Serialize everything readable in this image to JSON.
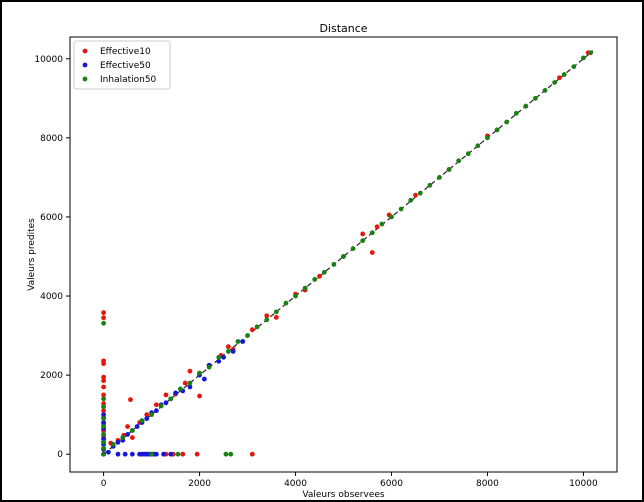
{
  "chart_data": {
    "type": "scatter",
    "title": "Distance",
    "xlabel": "Valeurs observees",
    "ylabel": "Valeurs predites",
    "xlim": [
      -700,
      10700
    ],
    "ylim": [
      -450,
      10550
    ],
    "xticks": [
      0,
      2000,
      4000,
      6000,
      8000,
      10000
    ],
    "yticks": [
      0,
      2000,
      4000,
      6000,
      8000,
      10000
    ],
    "grid": false,
    "legend_position": "top-left",
    "identity_line": true,
    "series": [
      {
        "name": "Effective10",
        "color": "#e8150c",
        "points": [
          [
            0,
            3580
          ],
          [
            0,
            3450
          ],
          [
            0,
            2360
          ],
          [
            0,
            2290
          ],
          [
            0,
            1950
          ],
          [
            0,
            1860
          ],
          [
            0,
            1700
          ],
          [
            0,
            1500
          ],
          [
            0,
            1280
          ],
          [
            0,
            1100
          ],
          [
            0,
            930
          ],
          [
            0,
            760
          ],
          [
            0,
            600
          ],
          [
            0,
            430
          ],
          [
            0,
            300
          ],
          [
            0,
            150
          ],
          [
            0,
            0
          ],
          [
            150,
            280
          ],
          [
            300,
            350
          ],
          [
            420,
            480
          ],
          [
            500,
            700
          ],
          [
            560,
            1380
          ],
          [
            600,
            420
          ],
          [
            750,
            800
          ],
          [
            900,
            1000
          ],
          [
            1100,
            1250
          ],
          [
            1300,
            1500
          ],
          [
            1500,
            1520
          ],
          [
            1700,
            1800
          ],
          [
            1800,
            2100
          ],
          [
            2000,
            1470
          ],
          [
            2000,
            2050
          ],
          [
            2200,
            2250
          ],
          [
            2450,
            2500
          ],
          [
            2600,
            2720
          ],
          [
            2700,
            2650
          ],
          [
            3100,
            3150
          ],
          [
            3400,
            3500
          ],
          [
            3600,
            3460
          ],
          [
            4000,
            4050
          ],
          [
            4200,
            4150
          ],
          [
            4500,
            4500
          ],
          [
            5000,
            5000
          ],
          [
            5400,
            5570
          ],
          [
            5600,
            5100
          ],
          [
            5700,
            5750
          ],
          [
            5950,
            6050
          ],
          [
            6500,
            6550
          ],
          [
            7200,
            7200
          ],
          [
            8000,
            8050
          ],
          [
            8800,
            8800
          ],
          [
            9500,
            9520
          ],
          [
            10100,
            10150
          ],
          [
            1300,
            0
          ],
          [
            1450,
            0
          ],
          [
            1650,
            0
          ],
          [
            1950,
            0
          ],
          [
            3100,
            0
          ]
        ]
      },
      {
        "name": "Effective50",
        "color": "#1517d8",
        "points": [
          [
            0,
            1000
          ],
          [
            0,
            800
          ],
          [
            0,
            650
          ],
          [
            0,
            500
          ],
          [
            0,
            380
          ],
          [
            0,
            250
          ],
          [
            0,
            120
          ],
          [
            0,
            0
          ],
          [
            100,
            50
          ],
          [
            200,
            200
          ],
          [
            300,
            300
          ],
          [
            400,
            350
          ],
          [
            500,
            500
          ],
          [
            600,
            600
          ],
          [
            700,
            700
          ],
          [
            800,
            800
          ],
          [
            900,
            900
          ],
          [
            1000,
            1050
          ],
          [
            1100,
            1100
          ],
          [
            1200,
            1250
          ],
          [
            1300,
            1300
          ],
          [
            1400,
            1400
          ],
          [
            1500,
            1550
          ],
          [
            1650,
            1600
          ],
          [
            1800,
            1700
          ],
          [
            2000,
            2000
          ],
          [
            2100,
            1900
          ],
          [
            2200,
            2250
          ],
          [
            2400,
            2350
          ],
          [
            2500,
            2450
          ],
          [
            2700,
            2600
          ],
          [
            2900,
            2850
          ],
          [
            300,
            0
          ],
          [
            450,
            0
          ],
          [
            600,
            0
          ],
          [
            750,
            0
          ],
          [
            800,
            0
          ],
          [
            850,
            0
          ],
          [
            900,
            0
          ],
          [
            950,
            0
          ],
          [
            1000,
            0
          ],
          [
            1050,
            0
          ],
          [
            1100,
            0
          ],
          [
            1250,
            0
          ],
          [
            1400,
            0
          ]
        ]
      },
      {
        "name": "Inhalation50",
        "color": "#1a8014",
        "points": [
          [
            0,
            3310
          ],
          [
            0,
            1400
          ],
          [
            0,
            1200
          ],
          [
            0,
            900
          ],
          [
            0,
            700
          ],
          [
            0,
            500
          ],
          [
            0,
            300
          ],
          [
            0,
            150
          ],
          [
            0,
            0
          ],
          [
            200,
            250
          ],
          [
            400,
            420
          ],
          [
            600,
            600
          ],
          [
            800,
            850
          ],
          [
            1000,
            1000
          ],
          [
            1200,
            1220
          ],
          [
            1400,
            1400
          ],
          [
            1600,
            1650
          ],
          [
            1800,
            1800
          ],
          [
            2000,
            2050
          ],
          [
            2200,
            2200
          ],
          [
            2400,
            2450
          ],
          [
            2600,
            2600
          ],
          [
            2800,
            2850
          ],
          [
            3000,
            3000
          ],
          [
            3200,
            3220
          ],
          [
            3400,
            3400
          ],
          [
            3600,
            3600
          ],
          [
            3800,
            3820
          ],
          [
            4000,
            4000
          ],
          [
            4200,
            4200
          ],
          [
            4400,
            4420
          ],
          [
            4600,
            4600
          ],
          [
            4800,
            4800
          ],
          [
            5000,
            5000
          ],
          [
            5200,
            5200
          ],
          [
            5400,
            5400
          ],
          [
            5600,
            5600
          ],
          [
            5800,
            5820
          ],
          [
            6000,
            6000
          ],
          [
            6200,
            6200
          ],
          [
            6400,
            6420
          ],
          [
            6600,
            6600
          ],
          [
            6800,
            6800
          ],
          [
            7000,
            7000
          ],
          [
            7200,
            7200
          ],
          [
            7400,
            7420
          ],
          [
            7600,
            7600
          ],
          [
            7800,
            7800
          ],
          [
            8000,
            8000
          ],
          [
            8200,
            8200
          ],
          [
            8400,
            8400
          ],
          [
            8600,
            8620
          ],
          [
            8800,
            8800
          ],
          [
            9000,
            9000
          ],
          [
            9200,
            9200
          ],
          [
            9400,
            9400
          ],
          [
            9600,
            9600
          ],
          [
            9800,
            9800
          ],
          [
            10000,
            10020
          ],
          [
            10150,
            10150
          ],
          [
            1000,
            0
          ],
          [
            1550,
            0
          ],
          [
            2550,
            0
          ],
          [
            2650,
            0
          ]
        ]
      }
    ]
  }
}
